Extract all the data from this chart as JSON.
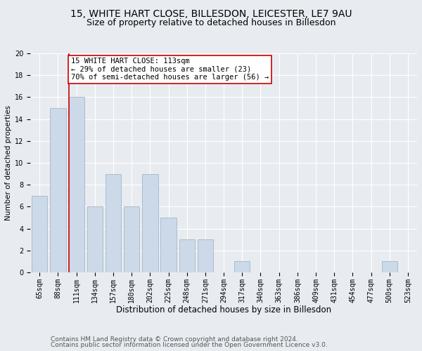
{
  "title1": "15, WHITE HART CLOSE, BILLESDON, LEICESTER, LE7 9AU",
  "title2": "Size of property relative to detached houses in Billesdon",
  "xlabel": "Distribution of detached houses by size in Billesdon",
  "ylabel": "Number of detached properties",
  "categories": [
    "65sqm",
    "88sqm",
    "111sqm",
    "134sqm",
    "157sqm",
    "180sqm",
    "202sqm",
    "225sqm",
    "248sqm",
    "271sqm",
    "294sqm",
    "317sqm",
    "340sqm",
    "363sqm",
    "386sqm",
    "409sqm",
    "431sqm",
    "454sqm",
    "477sqm",
    "500sqm",
    "523sqm"
  ],
  "values": [
    7,
    15,
    16,
    6,
    9,
    6,
    9,
    5,
    3,
    3,
    0,
    1,
    0,
    0,
    0,
    0,
    0,
    0,
    0,
    1,
    0
  ],
  "bar_color": "#ccd9e8",
  "bar_edge_color": "#aabcce",
  "vline_x_index": 2,
  "vline_color": "#cc0000",
  "annotation_box_line1": "15 WHITE HART CLOSE: 113sqm",
  "annotation_box_line2": "← 29% of detached houses are smaller (23)",
  "annotation_box_line3": "70% of semi-detached houses are larger (56) →",
  "annotation_box_color": "#cc0000",
  "annotation_box_bg": "#ffffff",
  "ylim": [
    0,
    20
  ],
  "yticks": [
    0,
    2,
    4,
    6,
    8,
    10,
    12,
    14,
    16,
    18,
    20
  ],
  "footer1": "Contains HM Land Registry data © Crown copyright and database right 2024.",
  "footer2": "Contains public sector information licensed under the Open Government Licence v3.0.",
  "bg_color": "#e8ecf0",
  "plot_bg_color": "#e8ecf0",
  "grid_color": "#ffffff",
  "title1_fontsize": 10,
  "title2_fontsize": 9,
  "xlabel_fontsize": 8.5,
  "ylabel_fontsize": 7.5,
  "tick_fontsize": 7,
  "footer_fontsize": 6.5,
  "annot_fontsize": 7.5
}
